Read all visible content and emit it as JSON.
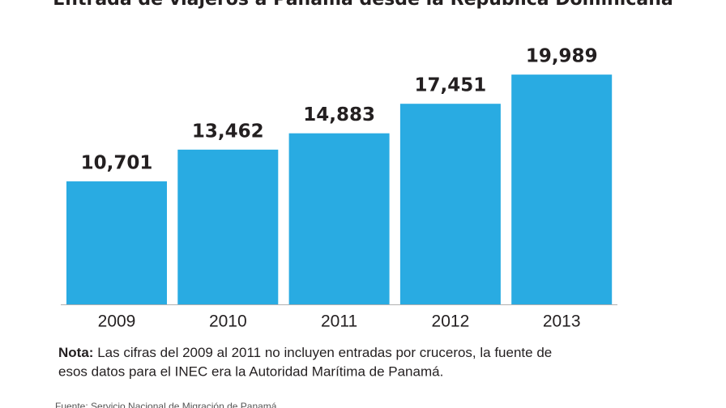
{
  "chart_data": {
    "type": "bar",
    "title": "Entrada de viajeros a Panamá desde la República Dominicana",
    "categories": [
      "2009",
      "2010",
      "2011",
      "2012",
      "2013"
    ],
    "values": [
      10701,
      13462,
      14883,
      17451,
      19989
    ],
    "value_labels": [
      "10,701",
      "13,462",
      "14,883",
      "17,451",
      "19,989"
    ],
    "color": "#29abe2",
    "note": {
      "label": "Nota:",
      "lines": [
        "Las cifras del 2009 al 2011 no incluyen entradas por cruceros, la fuente de",
        "esos datos para el INEC era la Autoridad Marítima de Panamá."
      ]
    },
    "source": "Fuente: Servicio Nacional de Migración de Panamá"
  }
}
